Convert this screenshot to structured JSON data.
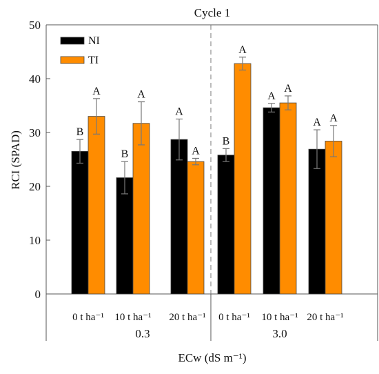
{
  "chart_data": {
    "type": "bar",
    "title": "Cycle 1",
    "ylabel": "RCI (SPAD)",
    "xlabel": "ECw (dS m⁻¹)",
    "ylim": [
      0,
      50
    ],
    "yticks": [
      0,
      10,
      20,
      30,
      40,
      50
    ],
    "grid": false,
    "legend_position": "top-left",
    "categories": [
      "0 t ha⁻¹",
      "10 t ha⁻¹",
      "20 t ha⁻¹",
      "0 t ha⁻¹",
      "10 t ha⁻¹",
      "20 t ha⁻¹"
    ],
    "groups": [
      {
        "label": "0.3",
        "categories": [
          0,
          1,
          2
        ]
      },
      {
        "label": "3.0",
        "categories": [
          3,
          4,
          5
        ]
      }
    ],
    "series": [
      {
        "name": "NI",
        "color": "#000000",
        "values": [
          26.5,
          21.6,
          28.7,
          25.8,
          34.6,
          26.9
        ],
        "errors": [
          2.2,
          3.0,
          3.8,
          1.2,
          0.8,
          3.6
        ],
        "letters": [
          "B",
          "B",
          "A",
          "B",
          "A",
          "A"
        ]
      },
      {
        "name": "TI",
        "color": "#ff8c00",
        "values": [
          33.0,
          31.7,
          24.6,
          42.8,
          35.5,
          28.4
        ],
        "errors": [
          3.3,
          4.0,
          0.6,
          1.2,
          1.3,
          2.9
        ],
        "letters": [
          "A",
          "A",
          "A",
          "A",
          "A",
          "A"
        ]
      }
    ]
  }
}
